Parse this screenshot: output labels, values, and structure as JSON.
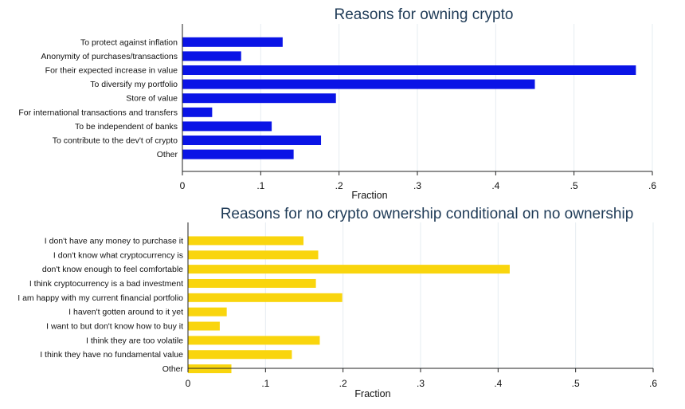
{
  "chart_data": [
    {
      "type": "bar",
      "orientation": "horizontal",
      "title": "Reasons for owning crypto",
      "xlabel": "Fraction",
      "ylabel": "",
      "xlim": [
        0,
        0.6
      ],
      "xticks": [
        "0",
        ".1",
        ".2",
        ".3",
        ".4",
        ".5",
        ".6"
      ],
      "grid": true,
      "color": "#0a14e6",
      "categories": [
        "To protect against inflation",
        "Anonymity of purchases/transactions",
        "For their expected increase in value",
        "To diversify my portfolio",
        "Store of value",
        "For international transactions and transfers",
        "To be independent of banks",
        "To contribute to the dev't of crypto",
        "Other"
      ],
      "values": [
        0.128,
        0.075,
        0.579,
        0.45,
        0.196,
        0.038,
        0.114,
        0.177,
        0.142
      ]
    },
    {
      "type": "bar",
      "orientation": "horizontal",
      "title": "Reasons for no crypto ownership conditional on no ownership",
      "xlabel": "Fraction",
      "ylabel": "",
      "xlim": [
        0,
        0.6
      ],
      "xticks": [
        "0",
        ".1",
        ".2",
        ".3",
        ".4",
        ".5",
        ".6"
      ],
      "grid": true,
      "color": "#f9d50d",
      "categories": [
        "I don't have any money to purchase it",
        "I don't know what cryptocurrency is",
        "don't know enough to feel comfortable",
        "I think cryptocurrency is a bad investment",
        "I am happy with my current financial portfolio",
        "I haven't gotten around to it yet",
        "I want to but don't know how to buy it",
        "I think they are too volatile",
        "I think they have no fundamental value",
        "Other"
      ],
      "values": [
        0.149,
        0.168,
        0.415,
        0.165,
        0.199,
        0.05,
        0.041,
        0.17,
        0.134,
        0.056
      ]
    }
  ]
}
